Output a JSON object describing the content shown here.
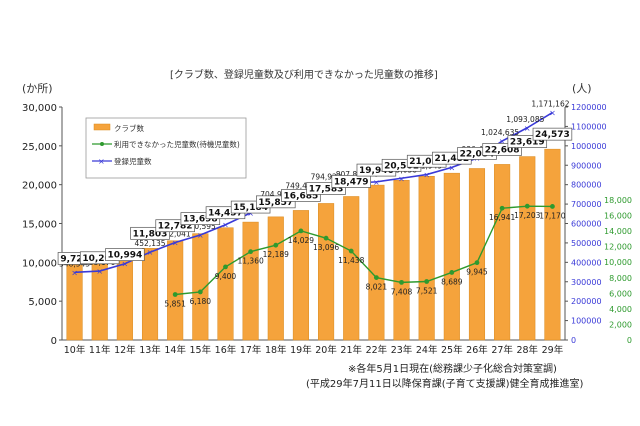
{
  "chart_data": {
    "type": "bar",
    "title": "[クラブ数、登録児童数及び利用できなかった児童数の推移]",
    "categories": [
      "10年",
      "11年",
      "12年",
      "13年",
      "14年",
      "15年",
      "16年",
      "17年",
      "18年",
      "19年",
      "20年",
      "21年",
      "22年",
      "23年",
      "24年",
      "25年",
      "26年",
      "27年",
      "28年",
      "29年"
    ],
    "left_unit": "(か所)",
    "right_unit": "(人)",
    "left_axis": {
      "min": 0,
      "max": 30000,
      "ticks": [
        "0",
        "5,000",
        "10,000",
        "15,000",
        "20,000",
        "25,000",
        "30,000"
      ]
    },
    "right_axis_registered": {
      "min": 0,
      "max": 1200000,
      "ticks": [
        "0",
        "100000",
        "200000",
        "300000",
        "400000",
        "500000",
        "600000",
        "700000",
        "800000",
        "900000",
        "1000000",
        "1100000",
        "1200000"
      ]
    },
    "right_axis_waiting": {
      "min": 0,
      "max": 18000,
      "ticks": [
        "0",
        "2,000",
        "4,000",
        "6,000",
        "8,000",
        "10,000",
        "12,000",
        "14,000",
        "16,000",
        "18,000"
      ]
    },
    "series": [
      {
        "name": "クラブ数",
        "kind": "bar",
        "color": "#f5a33c",
        "values": [
          9729,
          10201,
          10994,
          11803,
          12782,
          13698,
          14457,
          15184,
          15857,
          16685,
          17583,
          18479,
          19946,
          20561,
          21085,
          21482,
          22084,
          22608,
          23619,
          24573
        ],
        "labels": [
          "9,729",
          "10,201",
          "10,994",
          "11,803",
          "12,782",
          "13,698",
          "14,457",
          "15,184",
          "15,857",
          "16,685",
          "17,583",
          "18,479",
          "19,946",
          "20,561",
          "21,085",
          "21,482",
          "22,084",
          "22,608",
          "23,619",
          "24,573"
        ]
      },
      {
        "name": "利用できなかった児童数(待機児童数)",
        "kind": "line",
        "color": "#2e9a2e",
        "values": [
          null,
          null,
          null,
          null,
          5851,
          6180,
          9400,
          11360,
          12189,
          14029,
          13096,
          11438,
          8021,
          7408,
          7521,
          8689,
          9945,
          16941,
          17203,
          17170
        ],
        "labels": [
          "",
          "",
          "",
          "",
          "5,851",
          "6,180",
          "9,400",
          "11,360",
          "12,189",
          "14,029",
          "13,096",
          "11,438",
          "8,021",
          "7,408",
          "7,521",
          "8,689",
          "9,945",
          "16,941",
          "17,203",
          "17,170"
        ]
      },
      {
        "name": "登録児童数",
        "kind": "line",
        "color": "#3a3ad8",
        "values": [
          348543,
          355176,
          392893,
          452135,
          502041,
          540595,
          593764,
          654823,
          704982,
          749478,
          794922,
          807857,
          814439,
          833038,
          851949,
          889205,
          936452,
          1024635,
          1093085,
          1171162
        ],
        "labels": [
          "348,543",
          "355,176",
          "392,893",
          "452,135",
          "502,041",
          "540,595",
          "593,764",
          "654,823",
          "704,982",
          "749,478",
          "794,922",
          "807,857",
          "814,439",
          "833,038",
          "851,949",
          "889,205",
          "936,452",
          "1,024,635",
          "1,093,085",
          "1,171,162"
        ]
      }
    ],
    "legend_placement": "top-left",
    "grid": false
  },
  "footnotes": [
    "※各年5月1日現在(総務課少子化総合対策室調)",
    "(平成29年7月11日以降保育課(子育て支援課)健全育成推進室)"
  ]
}
